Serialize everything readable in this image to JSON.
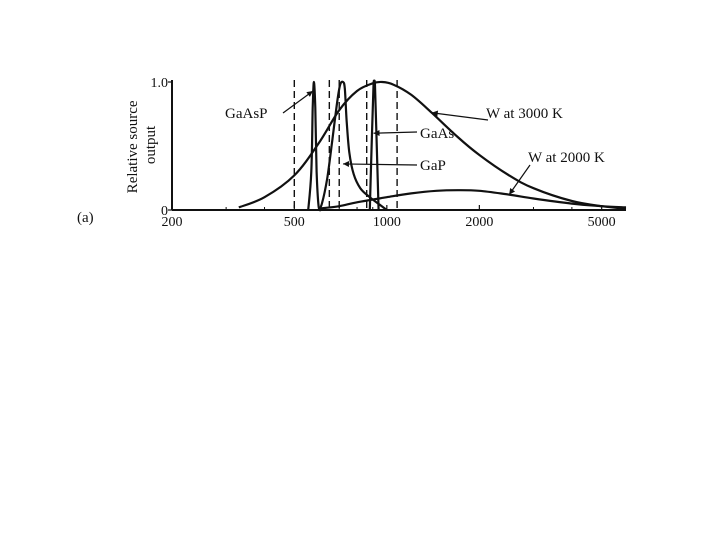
{
  "panel_label": "(a)",
  "colors": {
    "ink": "#111111",
    "background": "#ffffff"
  },
  "chart_data": {
    "type": "line",
    "title": "",
    "xlabel": "",
    "ylabel": "Relative source output",
    "ylabel_lines": [
      "Relative source",
      "output"
    ],
    "x_scale": "log",
    "xlim": [
      200,
      6000
    ],
    "ylim": [
      0,
      1.0
    ],
    "x_ticks": [
      {
        "value": 200,
        "label": "200"
      },
      {
        "value": 500,
        "label": "500"
      },
      {
        "value": 1000,
        "label": "1000"
      },
      {
        "value": 2000,
        "label": "2000"
      },
      {
        "value": 5000,
        "label": "5000"
      }
    ],
    "y_ticks": [
      {
        "value": 0,
        "label": "0"
      },
      {
        "value": 1.0,
        "label": "1.0"
      }
    ],
    "minor_x_ticks": [
      300,
      400,
      600,
      700,
      800,
      900,
      3000,
      4000
    ],
    "grid": false,
    "legend": "none",
    "series": [
      {
        "name": "W at 3000 K",
        "style": "solid",
        "x": [
          330,
          400,
          500,
          600,
          700,
          800,
          900,
          966,
          1050,
          1200,
          1400,
          1700,
          2000,
          2500,
          3000,
          4000,
          5000,
          6000
        ],
        "y": [
          0.02,
          0.1,
          0.27,
          0.52,
          0.78,
          0.93,
          0.99,
          1.0,
          0.98,
          0.9,
          0.76,
          0.57,
          0.43,
          0.27,
          0.17,
          0.07,
          0.03,
          0.01
        ]
      },
      {
        "name": "W at 2000 K",
        "style": "solid",
        "x": [
          600,
          700,
          800,
          1000,
          1200,
          1450,
          1700,
          2000,
          2500,
          3000,
          4000,
          5000,
          6000
        ],
        "y": [
          0.01,
          0.03,
          0.06,
          0.1,
          0.13,
          0.15,
          0.155,
          0.15,
          0.12,
          0.09,
          0.05,
          0.03,
          0.02
        ]
      },
      {
        "name": "GaAsP",
        "style": "solid",
        "x": [
          555,
          568,
          574,
          579,
          585,
          591,
          600,
          612
        ],
        "y": [
          0,
          0.3,
          0.8,
          1.0,
          0.8,
          0.3,
          0.03,
          0
        ]
      },
      {
        "name": "GaP",
        "style": "solid",
        "x": [
          600,
          615,
          640,
          665,
          690,
          705,
          720,
          730,
          740,
          755,
          780,
          820,
          880,
          950,
          1000
        ],
        "y": [
          0,
          0.05,
          0.25,
          0.55,
          0.85,
          0.98,
          1.0,
          0.95,
          0.7,
          0.45,
          0.28,
          0.17,
          0.1,
          0.04,
          0
        ]
      },
      {
        "name": "GaAs",
        "style": "solid",
        "x": [
          880,
          895,
          905,
          910,
          915,
          925,
          940
        ],
        "y": [
          0,
          0.6,
          0.97,
          1.0,
          0.97,
          0.6,
          0
        ]
      }
    ],
    "vertical_lines": [
      {
        "x": 500,
        "style": "dashed"
      },
      {
        "x": 650,
        "style": "dashed"
      },
      {
        "x": 700,
        "style": "dashed"
      },
      {
        "x": 860,
        "style": "dashed"
      },
      {
        "x": 1080,
        "style": "dashed"
      }
    ],
    "annotations": [
      {
        "text": "GaAsP",
        "target_x": 575,
        "target_y": 0.93
      },
      {
        "text": "GaP",
        "target_x": 720,
        "target_y": 0.36
      },
      {
        "text": "GaAs",
        "target_x": 905,
        "target_y": 0.6
      },
      {
        "text": "W at 3000 K",
        "target_x": 1400,
        "target_y": 0.76
      },
      {
        "text": "W at 2000 K",
        "target_x": 2500,
        "target_y": 0.12
      }
    ]
  }
}
